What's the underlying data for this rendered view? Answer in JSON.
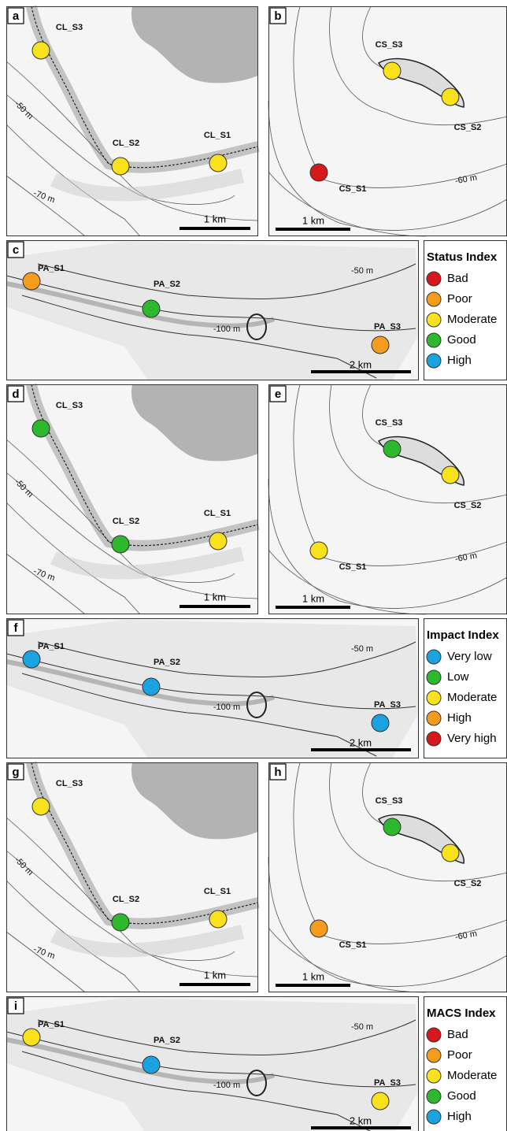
{
  "panels": [
    {
      "letter": "a",
      "sites": [
        {
          "label": "CL_S3",
          "color": "#f9e11b"
        },
        {
          "label": "CL_S2",
          "color": "#f9e11b"
        },
        {
          "label": "CL_S1",
          "color": "#f9e11b"
        }
      ],
      "contours": [
        "-50 m",
        "-70 m"
      ],
      "scale": "1 km"
    },
    {
      "letter": "b",
      "sites": [
        {
          "label": "CS_S3",
          "color": "#f9e11b"
        },
        {
          "label": "CS_S2",
          "color": "#f9e11b"
        },
        {
          "label": "CS_S1",
          "color": "#d7191c"
        }
      ],
      "contours": [
        "-60 m"
      ],
      "scale": "1 km"
    },
    {
      "letter": "c",
      "sites": [
        {
          "label": "PA_S1",
          "color": "#f39c1e"
        },
        {
          "label": "PA_S2",
          "color": "#2db82d"
        },
        {
          "label": "PA_S3",
          "color": "#f39c1e"
        }
      ],
      "contours": [
        "-50 m",
        "-100 m"
      ],
      "scale": "2 km"
    },
    {
      "letter": "d",
      "sites": [
        {
          "label": "CL_S3",
          "color": "#2db82d"
        },
        {
          "label": "CL_S2",
          "color": "#2db82d"
        },
        {
          "label": "CL_S1",
          "color": "#f9e11b"
        }
      ],
      "contours": [
        "-50 m",
        "-70 m"
      ],
      "scale": "1 km"
    },
    {
      "letter": "e",
      "sites": [
        {
          "label": "CS_S3",
          "color": "#2db82d"
        },
        {
          "label": "CS_S2",
          "color": "#f9e11b"
        },
        {
          "label": "CS_S1",
          "color": "#f9e11b"
        }
      ],
      "contours": [
        "-60 m"
      ],
      "scale": "1 km"
    },
    {
      "letter": "f",
      "sites": [
        {
          "label": "PA_S1",
          "color": "#1aa3e0"
        },
        {
          "label": "PA_S2",
          "color": "#1aa3e0"
        },
        {
          "label": "PA_S3",
          "color": "#1aa3e0"
        }
      ],
      "contours": [
        "-50 m",
        "-100 m"
      ],
      "scale": "2 km"
    },
    {
      "letter": "g",
      "sites": [
        {
          "label": "CL_S3",
          "color": "#f9e11b"
        },
        {
          "label": "CL_S2",
          "color": "#2db82d"
        },
        {
          "label": "CL_S1",
          "color": "#f9e11b"
        }
      ],
      "contours": [
        "-50 m",
        "-70 m"
      ],
      "scale": "1 km"
    },
    {
      "letter": "h",
      "sites": [
        {
          "label": "CS_S3",
          "color": "#2db82d"
        },
        {
          "label": "CS_S2",
          "color": "#f9e11b"
        },
        {
          "label": "CS_S1",
          "color": "#f39c1e"
        }
      ],
      "contours": [
        "-60 m"
      ],
      "scale": "1 km"
    },
    {
      "letter": "i",
      "sites": [
        {
          "label": "PA_S1",
          "color": "#f9e11b"
        },
        {
          "label": "PA_S2",
          "color": "#1aa3e0"
        },
        {
          "label": "PA_S3",
          "color": "#f9e11b"
        }
      ],
      "contours": [
        "-50 m",
        "-100 m"
      ],
      "scale": "2 km"
    }
  ],
  "legends": [
    {
      "title": "Status Index",
      "items": [
        {
          "label": "Bad",
          "color": "#d7191c"
        },
        {
          "label": "Poor",
          "color": "#f39c1e"
        },
        {
          "label": "Moderate",
          "color": "#f9e11b"
        },
        {
          "label": "Good",
          "color": "#2db82d"
        },
        {
          "label": "High",
          "color": "#1aa3e0"
        }
      ]
    },
    {
      "title": "Impact Index",
      "items": [
        {
          "label": "Very low",
          "color": "#1aa3e0"
        },
        {
          "label": "Low",
          "color": "#2db82d"
        },
        {
          "label": "Moderate",
          "color": "#f9e11b"
        },
        {
          "label": "High",
          "color": "#f39c1e"
        },
        {
          "label": "Very high",
          "color": "#d7191c"
        }
      ]
    },
    {
      "title": "MACS Index",
      "items": [
        {
          "label": "Bad",
          "color": "#d7191c"
        },
        {
          "label": "Poor",
          "color": "#f39c1e"
        },
        {
          "label": "Moderate",
          "color": "#f9e11b"
        },
        {
          "label": "Good",
          "color": "#2db82d"
        },
        {
          "label": "High",
          "color": "#1aa3e0"
        }
      ]
    }
  ]
}
